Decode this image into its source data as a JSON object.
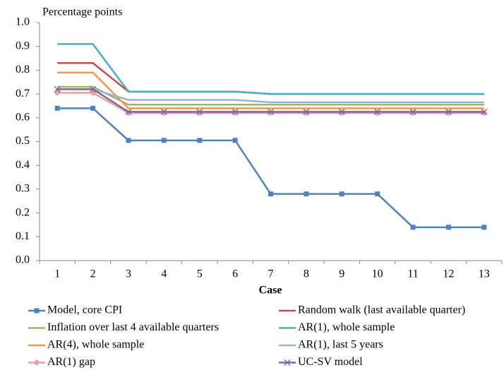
{
  "chart_data": {
    "type": "line",
    "y_axis_label": "Percentage points",
    "x_axis_label": "Case",
    "categories": [
      "1",
      "2",
      "3",
      "4",
      "5",
      "6",
      "7",
      "8",
      "9",
      "10",
      "11",
      "12",
      "13"
    ],
    "ylim": [
      0,
      1
    ],
    "yticks": [
      {
        "value": 0,
        "label": "0.0"
      },
      0.1,
      0.2,
      0.3,
      0.4,
      0.5,
      0.6,
      0.7,
      0.8,
      0.9,
      {
        "value": 1,
        "label": "1.0"
      }
    ],
    "grid": false,
    "series": [
      {
        "name": "Model, core CPI",
        "color": "#4f81bd",
        "marker": "square",
        "values": [
          0.64,
          0.64,
          0.505,
          0.505,
          0.505,
          0.505,
          0.28,
          0.28,
          0.28,
          0.28,
          0.14,
          0.14,
          0.14
        ]
      },
      {
        "name": "Random walk (last available quarter)",
        "color": "#c0504d",
        "values": [
          0.83,
          0.83,
          0.71,
          0.71,
          0.71,
          0.71,
          0.7,
          0.7,
          0.7,
          0.7,
          0.7,
          0.7,
          0.7
        ]
      },
      {
        "name": "Inflation over last 4 available quarters",
        "color": "#9bbb59",
        "values": [
          0.73,
          0.73,
          0.655,
          0.655,
          0.655,
          0.655,
          0.655,
          0.655,
          0.655,
          0.655,
          0.655,
          0.655,
          0.655
        ]
      },
      {
        "name": "AR(1), whole sample",
        "color": "#4bacc6",
        "values": [
          0.91,
          0.91,
          0.71,
          0.71,
          0.71,
          0.71,
          0.7,
          0.7,
          0.7,
          0.7,
          0.7,
          0.7,
          0.7
        ]
      },
      {
        "name": "AR(4), whole sample",
        "color": "#f79646",
        "values": [
          0.79,
          0.79,
          0.64,
          0.64,
          0.64,
          0.64,
          0.64,
          0.64,
          0.64,
          0.64,
          0.64,
          0.64,
          0.64
        ]
      },
      {
        "name": "AR(1), last 5 years",
        "color": "#95b3d7",
        "values": [
          0.72,
          0.72,
          0.675,
          0.675,
          0.675,
          0.675,
          0.665,
          0.665,
          0.665,
          0.665,
          0.665,
          0.665,
          0.665
        ]
      },
      {
        "name": "AR(1) gap",
        "color": "#e6a0a0",
        "marker": "diamond",
        "values": [
          0.705,
          0.705,
          0.62,
          0.62,
          0.62,
          0.62,
          0.62,
          0.62,
          0.62,
          0.62,
          0.62,
          0.62,
          0.62
        ]
      },
      {
        "name": "UC-SV model",
        "color": "#8064a2",
        "marker": "x",
        "values": [
          0.72,
          0.72,
          0.625,
          0.625,
          0.625,
          0.625,
          0.625,
          0.625,
          0.625,
          0.625,
          0.625,
          0.625,
          0.625
        ]
      }
    ]
  }
}
